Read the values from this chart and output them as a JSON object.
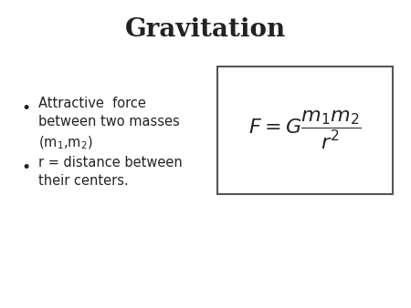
{
  "title": "Gravitation",
  "title_fontsize": 20,
  "title_fontweight": "bold",
  "title_fontfamily": "serif",
  "bullet1_text": "Attractive  force\nbetween two masses\n(m$_1$,m$_2$)",
  "bullet2_text": "r = distance between\ntheir centers.",
  "formula": "$F = G\\dfrac{m_1 m_2}{r^2}$",
  "bullet_fontsize": 10.5,
  "formula_fontsize": 16,
  "background_color": "#ffffff",
  "text_color": "#222222",
  "box_edge_color": "#555555"
}
